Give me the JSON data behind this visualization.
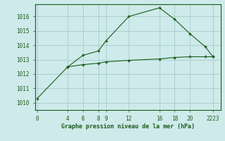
{
  "line1_x": [
    0,
    4,
    6,
    8,
    9,
    12,
    16,
    18,
    20,
    22,
    23
  ],
  "line1_y": [
    1010.3,
    1012.5,
    1013.3,
    1013.6,
    1014.3,
    1016.0,
    1016.6,
    1015.8,
    1014.8,
    1013.9,
    1013.2
  ],
  "line2_x": [
    4,
    6,
    8,
    9,
    12,
    16,
    18,
    20,
    22,
    23
  ],
  "line2_y": [
    1012.5,
    1012.65,
    1012.75,
    1012.85,
    1012.95,
    1013.05,
    1013.15,
    1013.2,
    1013.2,
    1013.2
  ],
  "yticks": [
    1010,
    1011,
    1012,
    1013,
    1014,
    1015,
    1016
  ],
  "ylim": [
    1009.5,
    1016.85
  ],
  "xlim": [
    -0.3,
    24.0
  ],
  "line_color": "#1a5c1a",
  "bg_color": "#ceeaea",
  "grid_color": "#a8cccc",
  "xlabel": "Graphe pression niveau de la mer (hPa)",
  "marker": "+"
}
